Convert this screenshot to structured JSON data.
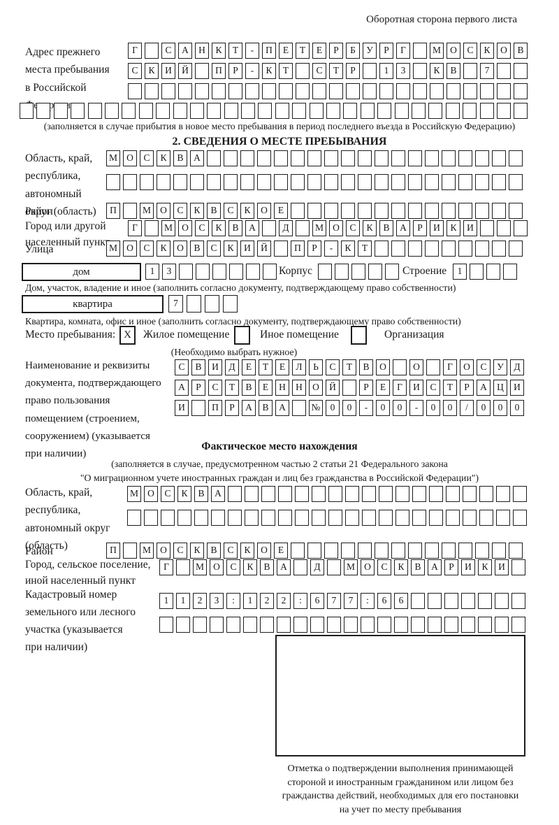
{
  "page": {
    "header_note": "Оборотная сторона первого листа"
  },
  "colors": {
    "ink": "#1a1a1a",
    "box_border": "#1c1c1c",
    "background": "#ffffff"
  },
  "prev_address": {
    "label_lines": [
      "Адрес прежнего",
      "места пребывания",
      "в Российской",
      "Федерации"
    ],
    "rows": [
      {
        "chars": "Г САНКТ-ПЕТЕРБУРГ МОСКОВ",
        "total": 24
      },
      {
        "chars": "СКИЙ ПР-КТ СТР 13 КВ 7",
        "total": 24
      },
      {
        "chars": "",
        "total": 24
      },
      {
        "chars": "",
        "total": 30
      }
    ],
    "note": "(заполняется в случае прибытия в новое место пребывания в период последнего въезда в Российскую Федерацию)"
  },
  "section2": {
    "title": "2. СВЕДЕНИЯ О МЕСТЕ ПРЕБЫВАНИЯ",
    "region": {
      "label_lines": [
        "Область, край,",
        "республика,",
        "автономный",
        "округ (область)"
      ],
      "rows": [
        {
          "chars": "МОСКВА",
          "total": 25
        },
        {
          "chars": "",
          "total": 25
        }
      ]
    },
    "district": {
      "label": "Район",
      "row": {
        "chars": "П МОСКВСКОЕ",
        "total": 25
      }
    },
    "city": {
      "label_lines": [
        "Город или другой",
        "населенный пункт"
      ],
      "row": {
        "chars": "Г МОСКВА Д МОСКВАРИКИ",
        "total": 24
      }
    },
    "street": {
      "label": "Улица",
      "row": {
        "chars": "МОСКОВСКИЙ ПР-КТ",
        "total": 25
      }
    },
    "house_row": {
      "house_label": "дом",
      "house_cells": {
        "chars": "13",
        "total": 8
      },
      "korpus_label": "Корпус",
      "korpus_cells": {
        "chars": "",
        "total": 5
      },
      "stroenie_label": "Строение",
      "stroenie_cells": {
        "chars": "1",
        "total": 4
      }
    },
    "house_caption": "Дом, участок, владение и иное (заполнить согласно документу, подтверждающему право собственности)",
    "apartment_row": {
      "label": "квартира",
      "cells": {
        "chars": "7",
        "total": 4
      }
    },
    "apartment_caption": "Квартира, комната, офис и иное (заполнить согласно документу, подтверждающему право собственности)",
    "stay_type": {
      "label": "Место пребывания:",
      "check_mark": "X",
      "options": [
        {
          "label": "Жилое помещение",
          "checked": true
        },
        {
          "label": "Иное помещение",
          "checked": false
        },
        {
          "label": "Организация",
          "checked": false
        }
      ],
      "note": "(Необходимо выбрать нужное)"
    },
    "document": {
      "label_lines": [
        "Наименование и реквизиты",
        "документа, подтверждающего",
        "право пользования",
        "помещением (строением,",
        "сооружением) (указывается",
        "при наличии)"
      ],
      "rows": [
        {
          "chars": "СВИДЕТЕЛЬСТВО О ГОСУД",
          "total": 21
        },
        {
          "chars": "АРСТВЕННОЙ РЕГИСТРАЦИ",
          "total": 21
        },
        {
          "chars": "И ПРАВА №00-00-00/000",
          "total": 21
        }
      ]
    }
  },
  "actual_location": {
    "title": "Фактическое место нахождения",
    "note_lines": [
      "(заполняется в случае, предусмотренном частью 2 статьи 21 Федерального закона",
      "\"О миграционном учете иностранных граждан и лиц без гражданства в Российской Федерации\")"
    ],
    "region": {
      "label_lines": [
        "Область, край,",
        "республика,",
        "автономный округ",
        "(область)"
      ],
      "rows": [
        {
          "chars": "МОСКВА",
          "total": 24
        },
        {
          "chars": "",
          "total": 24
        }
      ]
    },
    "district": {
      "label": "Район",
      "row": {
        "chars": "П МОСКВСКОЕ",
        "total": 25
      }
    },
    "city": {
      "label_lines": [
        "Город, сельское поселение,",
        "иной населенный пункт"
      ],
      "row": {
        "chars": "Г МОСКВА Д МОСКВАРИКИ",
        "total": 22
      }
    },
    "cadastral": {
      "label_lines": [
        "Кадастровый номер",
        "земельного или лесного",
        "участка (указывается",
        "при наличии)"
      ],
      "rows": [
        {
          "chars": "1123:122:677:66",
          "total": 22
        },
        {
          "chars": "",
          "total": 22
        }
      ]
    }
  },
  "stamp": {
    "caption_lines": [
      "Отметка о подтверждении выполнения принимающей",
      "стороной и иностранным гражданином или лицом без",
      "гражданства действий, необходимых для его постановки",
      "на учет по месту пребывания"
    ]
  }
}
